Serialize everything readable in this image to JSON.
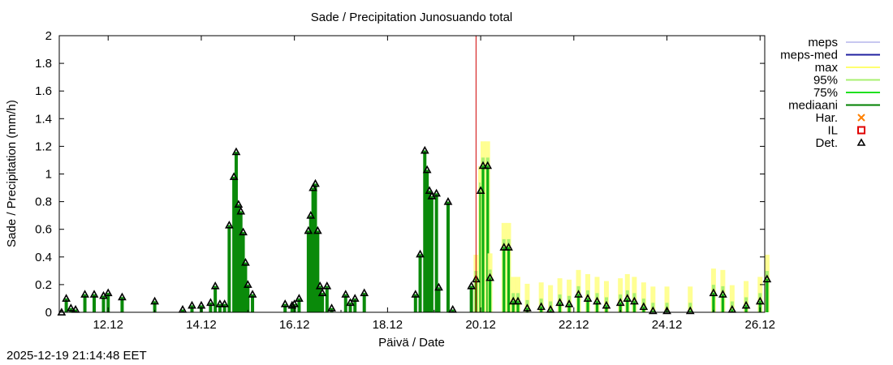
{
  "chart_data": {
    "type": "bar",
    "title": "Sade / Precipitation  Junosuando total",
    "xlabel": "Päivä / Date",
    "ylabel": "Sade / Precipitation (mm/h)",
    "ylim": [
      0,
      2
    ],
    "yticks": [
      "0",
      "0.2",
      "0.4",
      "0.6",
      "0.8",
      "1",
      "1.2",
      "1.4",
      "1.6",
      "1.8",
      "2"
    ],
    "xlim_days": [
      10.95,
      26.1
    ],
    "xticks": [
      {
        "day": 12,
        "label": "12.12"
      },
      {
        "day": 14,
        "label": "14.12"
      },
      {
        "day": 16,
        "label": "16.12"
      },
      {
        "day": 18,
        "label": "18.12"
      },
      {
        "day": 20,
        "label": "20.12"
      },
      {
        "day": 22,
        "label": "22.12"
      },
      {
        "day": 24,
        "label": "24.12"
      },
      {
        "day": 26,
        "label": "26.12"
      }
    ],
    "now_day": 19.9,
    "legend": [
      {
        "label": "meps",
        "color": "#c8c8f0",
        "kind": "line"
      },
      {
        "label": "meps-med",
        "color": "#2020a0",
        "kind": "line"
      },
      {
        "label": "max",
        "color": "#ffff70",
        "kind": "line"
      },
      {
        "label": "95%",
        "color": "#a8f070",
        "kind": "line"
      },
      {
        "label": "75%",
        "color": "#20e020",
        "kind": "line"
      },
      {
        "label": "mediaani",
        "color": "#008000",
        "kind": "line"
      },
      {
        "label": "Har.",
        "color": "#ff8000",
        "kind": "cross"
      },
      {
        "label": "IL",
        "color": "#e00000",
        "kind": "square"
      },
      {
        "label": "Det.",
        "color": "#000000",
        "kind": "triangle"
      }
    ],
    "series": [
      {
        "name": "Det. (observed)",
        "kind": "triangle",
        "points": [
          [
            11.0,
            0.0
          ],
          [
            11.1,
            0.1
          ],
          [
            11.2,
            0.03
          ],
          [
            11.3,
            0.02
          ],
          [
            11.5,
            0.13
          ],
          [
            11.7,
            0.13
          ],
          [
            11.9,
            0.12
          ],
          [
            12.0,
            0.14
          ],
          [
            12.3,
            0.11
          ],
          [
            13.0,
            0.08
          ],
          [
            13.6,
            0.02
          ],
          [
            13.8,
            0.05
          ],
          [
            14.0,
            0.05
          ],
          [
            14.2,
            0.07
          ],
          [
            14.3,
            0.19
          ],
          [
            14.4,
            0.06
          ],
          [
            14.5,
            0.06
          ],
          [
            14.6,
            0.63
          ],
          [
            14.7,
            0.98
          ],
          [
            14.75,
            1.16
          ],
          [
            14.8,
            0.78
          ],
          [
            14.85,
            0.73
          ],
          [
            14.9,
            0.58
          ],
          [
            14.95,
            0.36
          ],
          [
            15.0,
            0.2
          ],
          [
            15.1,
            0.13
          ],
          [
            15.8,
            0.06
          ],
          [
            15.95,
            0.05
          ],
          [
            16.0,
            0.06
          ],
          [
            16.1,
            0.1
          ],
          [
            16.3,
            0.59
          ],
          [
            16.35,
            0.7
          ],
          [
            16.4,
            0.9
          ],
          [
            16.45,
            0.93
          ],
          [
            16.5,
            0.59
          ],
          [
            16.55,
            0.19
          ],
          [
            16.6,
            0.14
          ],
          [
            16.7,
            0.19
          ],
          [
            16.8,
            0.03
          ],
          [
            17.1,
            0.13
          ],
          [
            17.2,
            0.07
          ],
          [
            17.3,
            0.1
          ],
          [
            17.5,
            0.14
          ],
          [
            18.6,
            0.13
          ],
          [
            18.7,
            0.42
          ],
          [
            18.8,
            1.17
          ],
          [
            18.85,
            1.03
          ],
          [
            18.9,
            0.88
          ],
          [
            18.95,
            0.84
          ],
          [
            19.05,
            0.86
          ],
          [
            19.1,
            0.18
          ],
          [
            19.3,
            0.8
          ],
          [
            19.4,
            0.02
          ],
          [
            19.8,
            0.19
          ],
          [
            19.9,
            0.24
          ],
          [
            20.0,
            0.88
          ],
          [
            20.05,
            1.06
          ],
          [
            20.15,
            1.06
          ],
          [
            20.2,
            0.25
          ],
          [
            20.5,
            0.47
          ],
          [
            20.6,
            0.47
          ],
          [
            20.7,
            0.08
          ],
          [
            20.8,
            0.08
          ],
          [
            21.0,
            0.03
          ],
          [
            21.3,
            0.04
          ],
          [
            21.5,
            0.02
          ],
          [
            21.7,
            0.07
          ],
          [
            21.9,
            0.06
          ],
          [
            22.1,
            0.13
          ],
          [
            22.3,
            0.1
          ],
          [
            22.5,
            0.08
          ],
          [
            22.7,
            0.05
          ],
          [
            23.0,
            0.07
          ],
          [
            23.15,
            0.1
          ],
          [
            23.3,
            0.08
          ],
          [
            23.5,
            0.04
          ],
          [
            23.7,
            0.01
          ],
          [
            24.0,
            0.01
          ],
          [
            24.5,
            0.01
          ],
          [
            25.0,
            0.14
          ],
          [
            25.2,
            0.13
          ],
          [
            25.4,
            0.02
          ],
          [
            25.7,
            0.05
          ],
          [
            26.0,
            0.08
          ],
          [
            26.15,
            0.24
          ]
        ]
      }
    ]
  },
  "footer": {
    "timestamp": "2025-12-19 21:14:48 EET"
  }
}
